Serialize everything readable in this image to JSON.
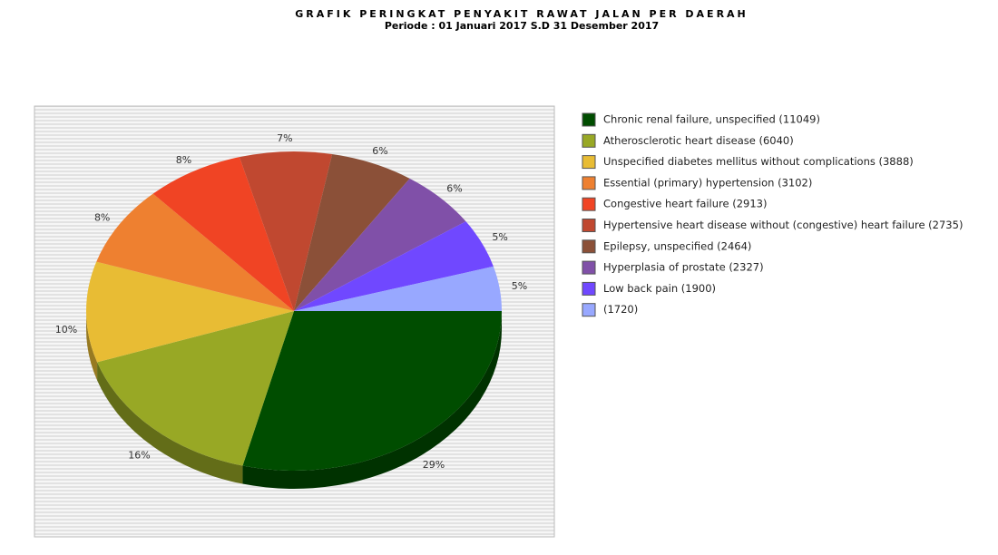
{
  "chart_data": {
    "type": "pie",
    "title": "GRAFIK PERINGKAT PENYAKIT RAWAT JALAN PER DAERAH",
    "subtitle": "Periode : 01 Januari 2017 S.D 31 Desember 2017",
    "categories": [
      "Chronic renal failure, unspecified (11049)",
      "Atherosclerotic heart disease (6040)",
      "Unspecified diabetes mellitus without complications (3888)",
      "Essential (primary) hypertension (3102)",
      "Congestive heart failure (2913)",
      "Hypertensive heart disease without (congestive) heart failure (2735)",
      "Epilepsy, unspecified (2464)",
      "Hyperplasia of prostate (2327)",
      "Low back pain (1900)",
      "(1720)"
    ],
    "values": [
      11049,
      6040,
      3888,
      3102,
      2913,
      2735,
      2464,
      2327,
      1900,
      1720
    ],
    "value_labels": [
      "29%",
      "16%",
      "10%",
      "8%",
      "8%",
      "7%",
      "6%",
      "6%",
      "5%",
      "5%"
    ],
    "colors": [
      "#004d00",
      "#98a825",
      "#e8bc34",
      "#ee8030",
      "#f04424",
      "#c04830",
      "#8b5038",
      "#8050a8",
      "#7048ff",
      "#98a8ff"
    ],
    "legend": "right"
  }
}
